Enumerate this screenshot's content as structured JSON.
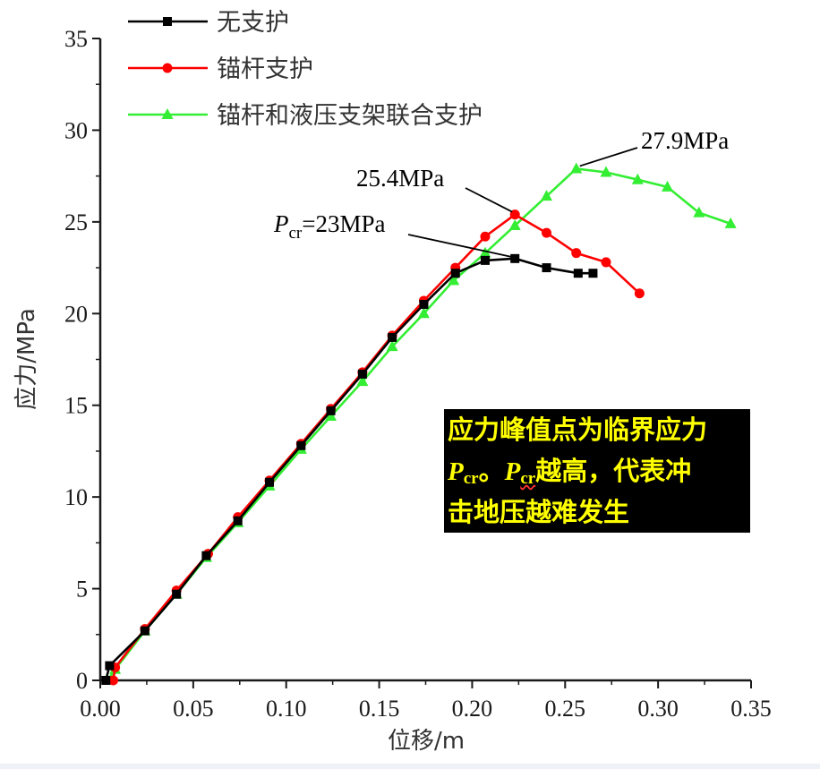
{
  "chart_data": {
    "type": "line",
    "xlabel": "位移/m",
    "ylabel": "应力/MPa",
    "xlim": [
      0,
      0.35
    ],
    "ylim": [
      0,
      35
    ],
    "xticks": [
      "0.00",
      "0.05",
      "0.10",
      "0.15",
      "0.20",
      "0.25",
      "0.30",
      "0.35"
    ],
    "yticks": [
      "0",
      "5",
      "10",
      "15",
      "20",
      "25",
      "30",
      "35"
    ],
    "legend_position": "top-left",
    "series": [
      {
        "name": "无支护",
        "color": "#000000",
        "marker": "square",
        "points": [
          [
            0.003,
            0
          ],
          [
            0.005,
            0.8
          ],
          [
            0.024,
            2.7
          ],
          [
            0.041,
            4.7
          ],
          [
            0.057,
            6.8
          ],
          [
            0.074,
            8.7
          ],
          [
            0.091,
            10.8
          ],
          [
            0.108,
            12.8
          ],
          [
            0.124,
            14.7
          ],
          [
            0.141,
            16.7
          ],
          [
            0.157,
            18.7
          ],
          [
            0.174,
            20.5
          ],
          [
            0.191,
            22.2
          ],
          [
            0.207,
            22.9
          ],
          [
            0.223,
            23.0
          ],
          [
            0.24,
            22.5
          ],
          [
            0.257,
            22.2
          ],
          [
            0.265,
            22.2
          ]
        ]
      },
      {
        "name": "锚杆支护",
        "color": "#ff0000",
        "marker": "circle",
        "points": [
          [
            0.007,
            0
          ],
          [
            0.008,
            0.7
          ],
          [
            0.024,
            2.8
          ],
          [
            0.041,
            4.9
          ],
          [
            0.058,
            6.9
          ],
          [
            0.074,
            8.9
          ],
          [
            0.091,
            10.9
          ],
          [
            0.108,
            12.9
          ],
          [
            0.124,
            14.8
          ],
          [
            0.141,
            16.8
          ],
          [
            0.157,
            18.8
          ],
          [
            0.174,
            20.7
          ],
          [
            0.191,
            22.5
          ],
          [
            0.207,
            24.2
          ],
          [
            0.223,
            25.4
          ],
          [
            0.24,
            24.4
          ],
          [
            0.256,
            23.3
          ],
          [
            0.272,
            22.8
          ],
          [
            0.29,
            21.1
          ]
        ]
      },
      {
        "name": "锚杆和液压支架联合支护",
        "color": "#33ee33",
        "marker": "triangle",
        "points": [
          [
            0.004,
            0
          ],
          [
            0.008,
            0.6
          ],
          [
            0.024,
            2.7
          ],
          [
            0.041,
            4.7
          ],
          [
            0.057,
            6.7
          ],
          [
            0.074,
            8.6
          ],
          [
            0.091,
            10.6
          ],
          [
            0.108,
            12.6
          ],
          [
            0.124,
            14.4
          ],
          [
            0.141,
            16.3
          ],
          [
            0.157,
            18.2
          ],
          [
            0.174,
            20.0
          ],
          [
            0.19,
            21.8
          ],
          [
            0.207,
            23.3
          ],
          [
            0.223,
            24.8
          ],
          [
            0.24,
            26.4
          ],
          [
            0.256,
            27.9
          ],
          [
            0.272,
            27.7
          ],
          [
            0.289,
            27.3
          ],
          [
            0.305,
            26.9
          ],
          [
            0.322,
            25.5
          ],
          [
            0.339,
            24.9
          ]
        ]
      }
    ],
    "annotations": {
      "pcr_symbol": "P",
      "pcr_sub": "cr",
      "pcr_value": "=23MPa",
      "anchor_label": "锚杆支护",
      "anchor_value": "25.4MPa",
      "combined_value": "27.9MPa"
    },
    "note": {
      "line1": "应力峰值点为临界应力",
      "p": "P",
      "sub": "cr",
      "sep": "。",
      "line2_tail": "越高，代表冲",
      "line3": "击地压越难发生",
      "bg_color": "#000000",
      "text_color": "#ffff00"
    }
  }
}
